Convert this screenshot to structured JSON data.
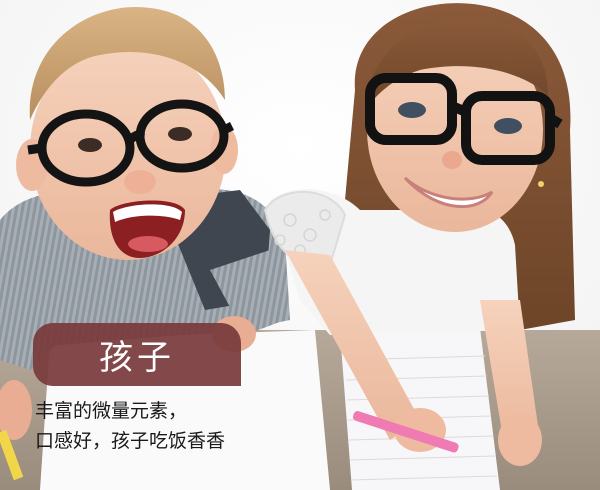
{
  "tag": {
    "label": "孩子"
  },
  "caption": {
    "line1": "丰富的微量元素，",
    "line2": "口感好，孩子吃饭香香"
  },
  "colors": {
    "tag_bg": "#7a3b3c",
    "tag_text": "#ffffff",
    "caption_text": "#1a1a1a"
  }
}
